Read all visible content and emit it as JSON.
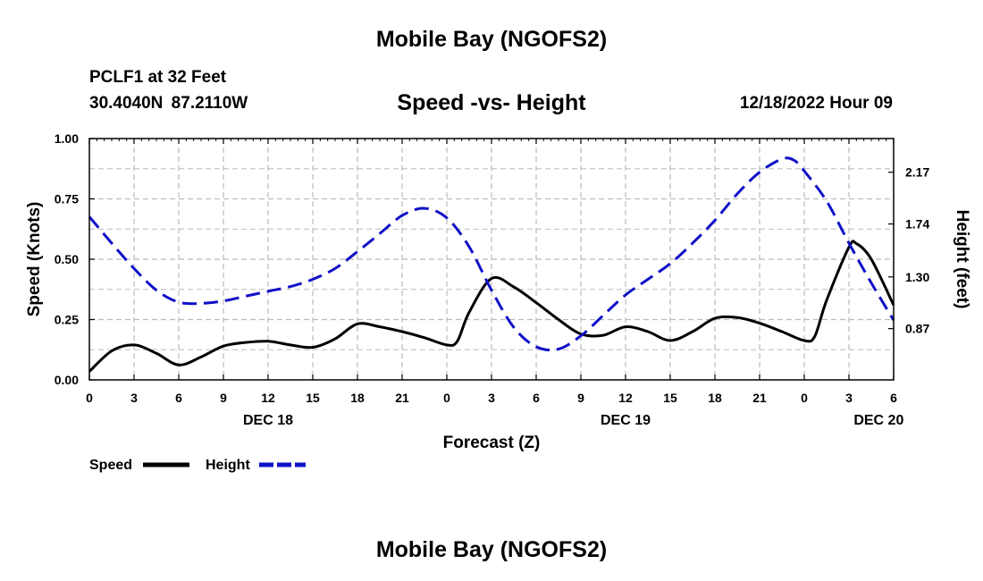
{
  "header": {
    "title": "Mobile Bay (NGOFS2)",
    "station": "PCLF1 at 32 Feet",
    "coords": "30.4040N 87.2110W",
    "subtitle": "Speed -vs- Height",
    "datetime": "12/18/2022 Hour 09"
  },
  "footer": {
    "title": "Mobile Bay (NGOFS2)"
  },
  "colors": {
    "speed": "#000000",
    "height": "#1010c8",
    "grid": "#bbbbbb"
  },
  "chart_data": {
    "type": "line",
    "xlabel": "Forecast (Z)",
    "ylabel": "Speed (Knots)",
    "y2label": "Height (feet)",
    "x_ticks": [
      {
        "h": 0,
        "label": "0"
      },
      {
        "h": 3,
        "label": "3"
      },
      {
        "h": 6,
        "label": "6"
      },
      {
        "h": 9,
        "label": "9"
      },
      {
        "h": 12,
        "label": "12"
      },
      {
        "h": 15,
        "label": "15"
      },
      {
        "h": 18,
        "label": "18"
      },
      {
        "h": 21,
        "label": "21"
      },
      {
        "h": 24,
        "label": "0"
      },
      {
        "h": 27,
        "label": "3"
      },
      {
        "h": 30,
        "label": "6"
      },
      {
        "h": 33,
        "label": "9"
      },
      {
        "h": 36,
        "label": "12"
      },
      {
        "h": 39,
        "label": "15"
      },
      {
        "h": 42,
        "label": "18"
      },
      {
        "h": 45,
        "label": "21"
      },
      {
        "h": 48,
        "label": "0"
      },
      {
        "h": 51,
        "label": "3"
      },
      {
        "h": 54,
        "label": "6"
      }
    ],
    "date_labels": [
      {
        "h": 12,
        "label": "DEC 18"
      },
      {
        "h": 36,
        "label": "DEC 19"
      },
      {
        "h": 53,
        "label": "DEC 20"
      }
    ],
    "xlim": [
      0,
      54
    ],
    "ylim": [
      0,
      1.0
    ],
    "y_ticks": [
      "0.00",
      "0.25",
      "0.50",
      "0.75",
      "1.00"
    ],
    "y2lim": [
      0.444,
      2.45
    ],
    "y2_ticks": [
      "0.87",
      "1.30",
      "1.74",
      "2.17"
    ],
    "legend": [
      {
        "name": "Speed",
        "key": "speed"
      },
      {
        "name": "Height",
        "key": "height"
      }
    ],
    "series": [
      {
        "name": "Speed",
        "axis": "left",
        "x": [
          0,
          1.5,
          3,
          4.5,
          6,
          7.5,
          9,
          10.5,
          12,
          13.5,
          15,
          16.5,
          18,
          19.5,
          21,
          22.5,
          24,
          24.7,
          25.5,
          27,
          28.5,
          30,
          31.5,
          33,
          34.5,
          36,
          37.5,
          39,
          40.5,
          42,
          43.5,
          45,
          46.5,
          48,
          48.7,
          49.5,
          51,
          51.5,
          52.5,
          54
        ],
        "values": [
          0.035,
          0.12,
          0.145,
          0.11,
          0.062,
          0.095,
          0.14,
          0.155,
          0.16,
          0.145,
          0.135,
          0.17,
          0.232,
          0.22,
          0.2,
          0.175,
          0.145,
          0.16,
          0.28,
          0.42,
          0.385,
          0.32,
          0.25,
          0.19,
          0.185,
          0.22,
          0.2,
          0.163,
          0.2,
          0.255,
          0.258,
          0.235,
          0.2,
          0.163,
          0.18,
          0.33,
          0.55,
          0.565,
          0.5,
          0.31
        ]
      },
      {
        "name": "Height",
        "axis": "right",
        "x": [
          0,
          1.5,
          3,
          4.5,
          6,
          7.5,
          9,
          10.5,
          12,
          13.5,
          15,
          16.5,
          18,
          19.5,
          21,
          22.5,
          24,
          25.5,
          27,
          28.5,
          30,
          31.5,
          33,
          34.5,
          36,
          37.5,
          39,
          40.5,
          42,
          43.5,
          45,
          46.5,
          47.3,
          48,
          49.5,
          51,
          52.5,
          54
        ],
        "values": [
          1.8,
          1.58,
          1.37,
          1.19,
          1.09,
          1.08,
          1.1,
          1.14,
          1.18,
          1.22,
          1.28,
          1.37,
          1.51,
          1.66,
          1.81,
          1.87,
          1.79,
          1.55,
          1.19,
          0.88,
          0.72,
          0.7,
          0.81,
          0.98,
          1.15,
          1.28,
          1.41,
          1.58,
          1.77,
          1.99,
          2.17,
          2.28,
          2.27,
          2.18,
          1.93,
          1.58,
          1.25,
          0.94
        ]
      }
    ]
  }
}
